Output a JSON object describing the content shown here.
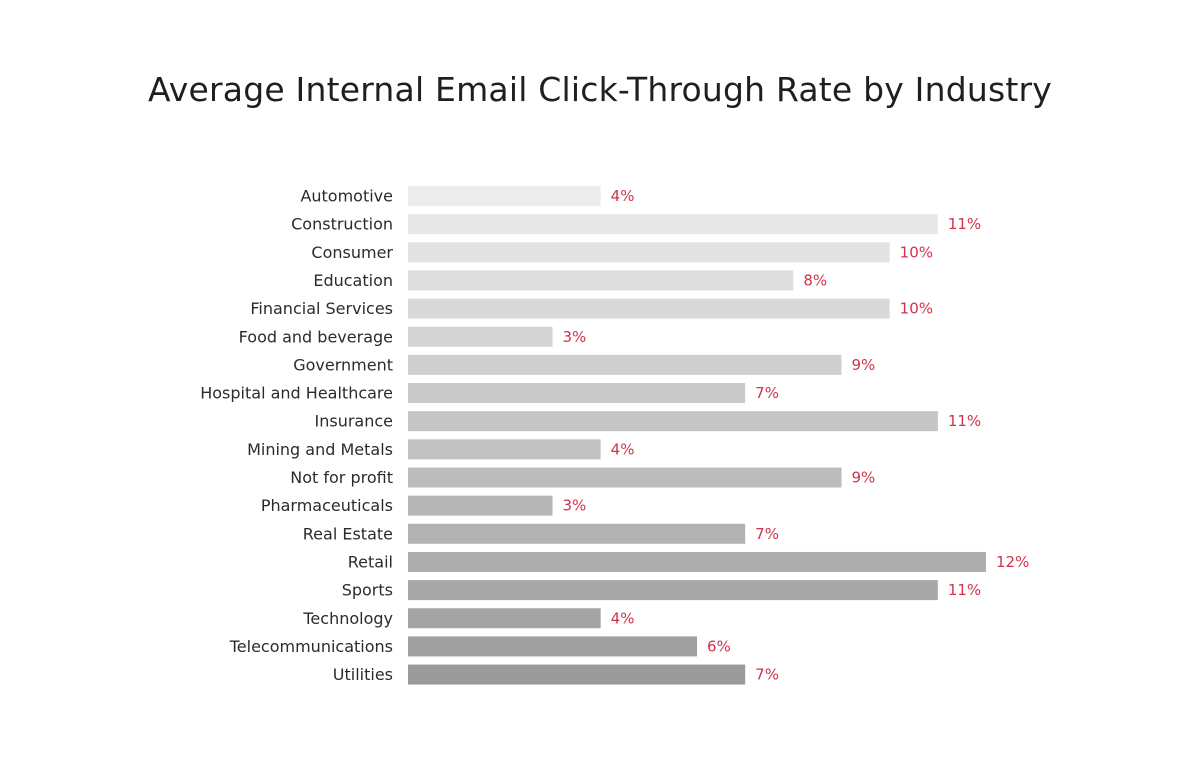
{
  "chart_data": {
    "type": "bar",
    "orientation": "horizontal",
    "title": "Average Internal Email Click-Through Rate by Industry",
    "categories": [
      "Automotive",
      "Construction",
      "Consumer",
      "Education",
      "Financial Services",
      "Food and beverage",
      "Government",
      "Hospital and Healthcare",
      "Insurance",
      "Mining and Metals",
      "Not for profit",
      "Pharmaceuticals",
      "Real Estate",
      "Retail",
      "Sports",
      "Technology",
      "Telecommunications",
      "Utilities"
    ],
    "values": [
      4,
      11,
      10,
      8,
      10,
      3,
      9,
      7,
      11,
      4,
      9,
      3,
      7,
      12,
      11,
      4,
      6,
      7
    ],
    "value_labels": [
      "4%",
      "11%",
      "10%",
      "8%",
      "10%",
      "3%",
      "9%",
      "7%",
      "11%",
      "4%",
      "9%",
      "3%",
      "7%",
      "12%",
      "11%",
      "4%",
      "6%",
      "7%"
    ],
    "unit": "%",
    "xlim": [
      0,
      12
    ],
    "grid": false,
    "legend": "none",
    "colors": {
      "bar_first": "#ececec",
      "bar_last": "#9a9a9a",
      "value_label": "#d0344a",
      "category_label": "#2b2b2b"
    }
  }
}
